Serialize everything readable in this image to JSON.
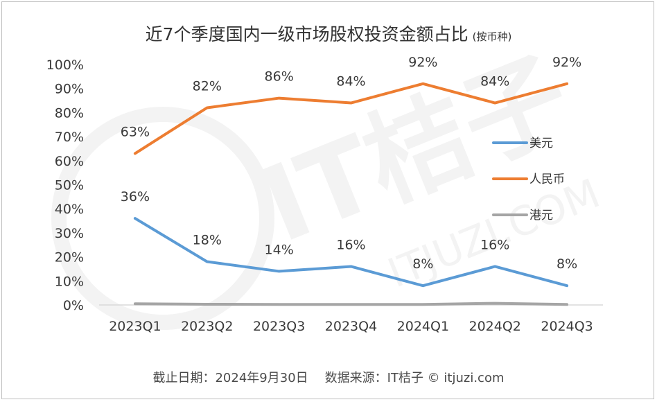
{
  "title": "近7个季度国内一级市场股权投资金额占比",
  "subtitle": "(按币种)",
  "footer": {
    "date": "截止日期：2024年9月30日",
    "source": "数据来源：IT桔子 © itjuzi.com"
  },
  "watermark": {
    "text": "IT桔子",
    "sub": "ITJUZI.COM"
  },
  "chart_data": {
    "type": "line",
    "categories": [
      "2023Q1",
      "2023Q2",
      "2023Q3",
      "2023Q4",
      "2024Q1",
      "2024Q2",
      "2024Q3"
    ],
    "series": [
      {
        "name": "美元",
        "values": [
          36,
          18,
          14,
          16,
          8,
          16,
          8
        ],
        "labels": [
          "36%",
          "18%",
          "14%",
          "16%",
          "8%",
          "16%",
          "8%"
        ],
        "color": "#5b9bd5"
      },
      {
        "name": "人民币",
        "values": [
          63,
          82,
          86,
          84,
          92,
          84,
          92
        ],
        "labels": [
          "63%",
          "82%",
          "86%",
          "84%",
          "92%",
          "84%",
          "92%"
        ],
        "color": "#ed7d31"
      },
      {
        "name": "港元",
        "values": [
          0.5,
          0.3,
          0.2,
          0.2,
          0.2,
          0.7,
          0.2
        ],
        "labels": [],
        "color": "#a5a5a5"
      }
    ],
    "y_ticks": [
      "0%",
      "10%",
      "20%",
      "30%",
      "40%",
      "50%",
      "60%",
      "70%",
      "80%",
      "90%",
      "100%"
    ],
    "ylim": [
      0,
      100
    ],
    "xlabel": "",
    "ylabel": "",
    "grid": false,
    "legend_position": "right"
  }
}
